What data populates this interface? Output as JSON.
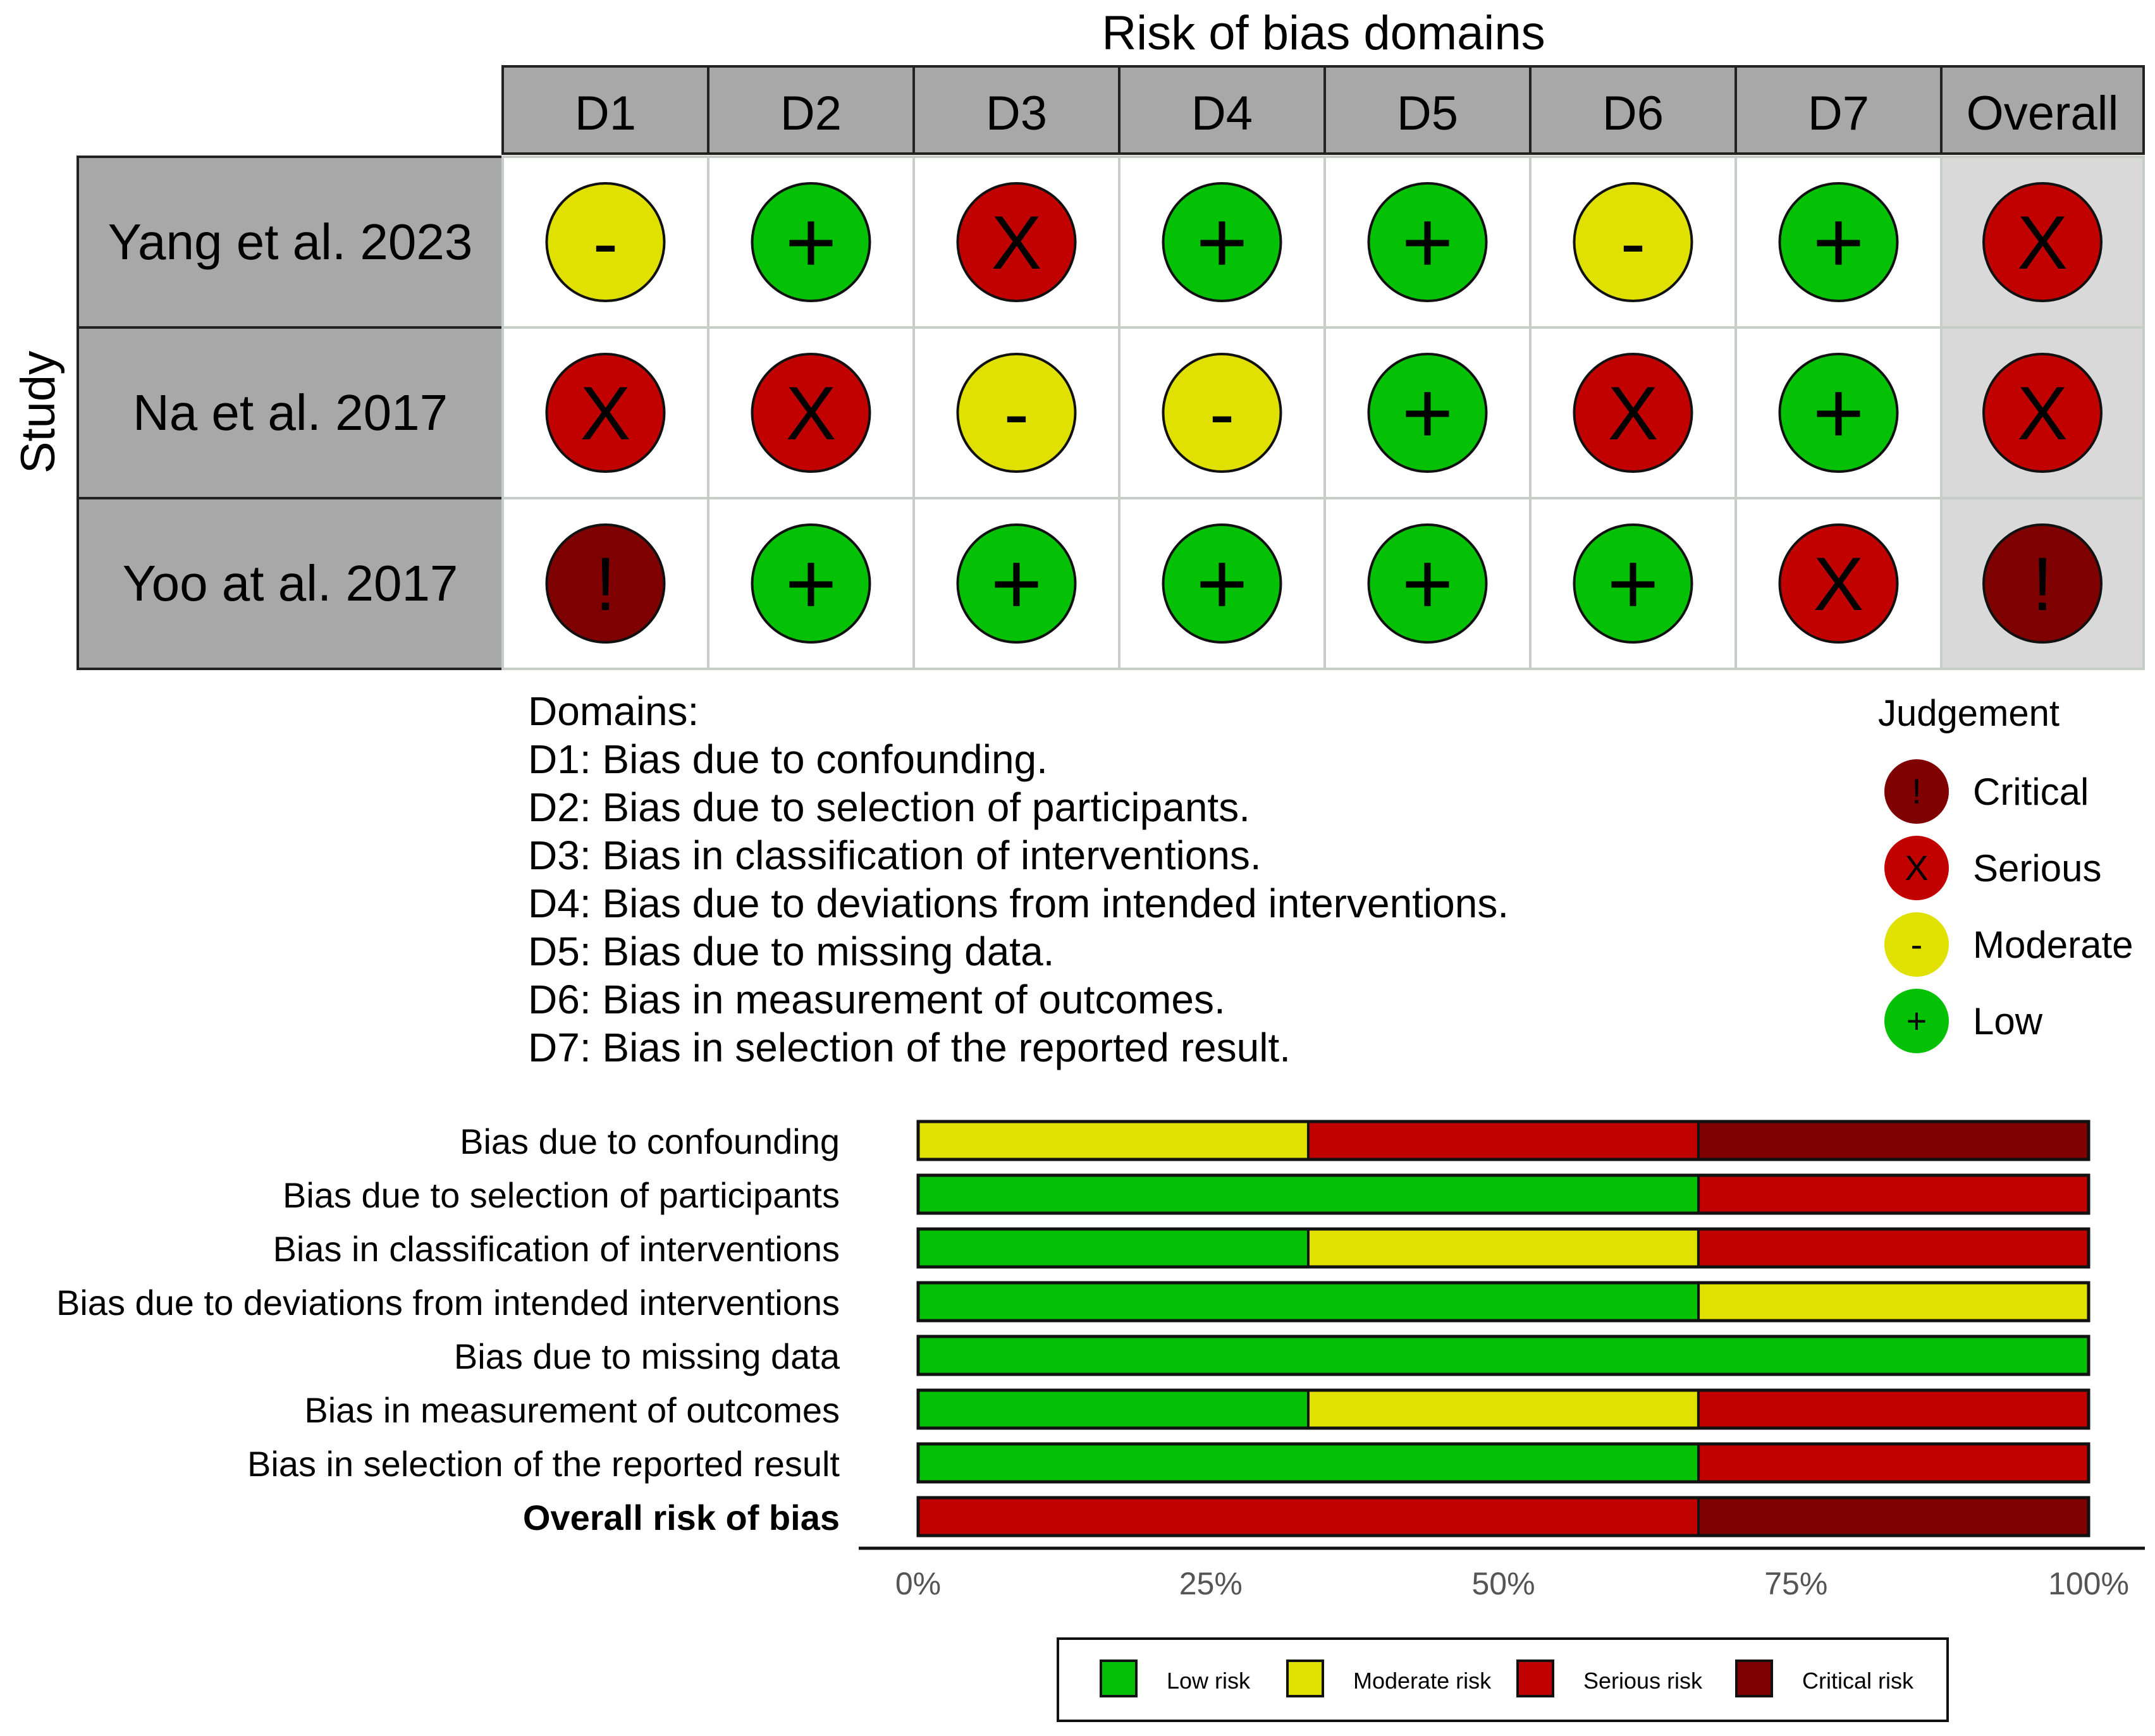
{
  "chart_data": [
    {
      "type": "table",
      "title": "Risk of bias domains",
      "row_axis_label": "Study",
      "columns": [
        "D1",
        "D2",
        "D3",
        "D4",
        "D5",
        "D6",
        "D7",
        "Overall"
      ],
      "rows": [
        {
          "study": "Yang et al. 2023",
          "judgements": [
            "-",
            "+",
            "X",
            "+",
            "+",
            "-",
            "+",
            "X"
          ]
        },
        {
          "study": "Na et al. 2017",
          "judgements": [
            "X",
            "X",
            "-",
            "-",
            "+",
            "X",
            "+",
            "X"
          ]
        },
        {
          "study": "Yoo at al. 2017",
          "judgements": [
            "!",
            "+",
            "+",
            "+",
            "+",
            "+",
            "X",
            "!"
          ]
        }
      ],
      "symbol_colors": {
        "+": "#05c105",
        "-": "#e1e101",
        "X": "#c10000",
        "!": "#7f0000"
      },
      "domains_heading": "Domains:",
      "domains": [
        "D1: Bias due to confounding.",
        "D2: Bias due to selection of participants.",
        "D3: Bias in classification of interventions.",
        "D4: Bias due to deviations from intended interventions.",
        "D5: Bias due to missing data.",
        "D6: Bias in measurement of outcomes.",
        "D7: Bias in selection of the reported result."
      ],
      "judgement_legend_title": "Judgement",
      "judgement_legend": [
        {
          "symbol": "!",
          "label": "Critical",
          "color": "#7f0000"
        },
        {
          "symbol": "X",
          "label": "Serious",
          "color": "#c10000"
        },
        {
          "symbol": "-",
          "label": "Moderate",
          "color": "#e1e101"
        },
        {
          "symbol": "+",
          "label": "Low",
          "color": "#05c105"
        }
      ]
    },
    {
      "type": "bar",
      "orientation": "horizontal",
      "stacked": true,
      "categories": [
        "Bias due to confounding",
        "Bias due to selection of participants",
        "Bias in classification of interventions",
        "Bias due to deviations from intended interventions",
        "Bias due to missing data",
        "Bias in measurement of outcomes",
        "Bias in selection of the reported result",
        "Overall risk of bias"
      ],
      "bold_category": "Overall risk of bias",
      "series": [
        {
          "name": "Low risk",
          "color": "#05c105",
          "values": [
            0,
            66.67,
            33.33,
            66.67,
            100,
            33.33,
            66.67,
            0
          ]
        },
        {
          "name": "Moderate risk",
          "color": "#e1e101",
          "values": [
            33.33,
            0,
            33.33,
            33.33,
            0,
            33.33,
            0,
            0
          ]
        },
        {
          "name": "Serious risk",
          "color": "#c10000",
          "values": [
            33.33,
            33.33,
            33.33,
            0,
            0,
            33.33,
            33.33,
            66.67
          ]
        },
        {
          "name": "Critical risk",
          "color": "#7f0000",
          "values": [
            33.33,
            0,
            0,
            0,
            0,
            0,
            0,
            33.33
          ]
        }
      ],
      "xlim": [
        0,
        100
      ],
      "x_tick_labels": [
        "0%",
        "25%",
        "50%",
        "75%",
        "100%"
      ],
      "legend_position": "bottom"
    }
  ]
}
